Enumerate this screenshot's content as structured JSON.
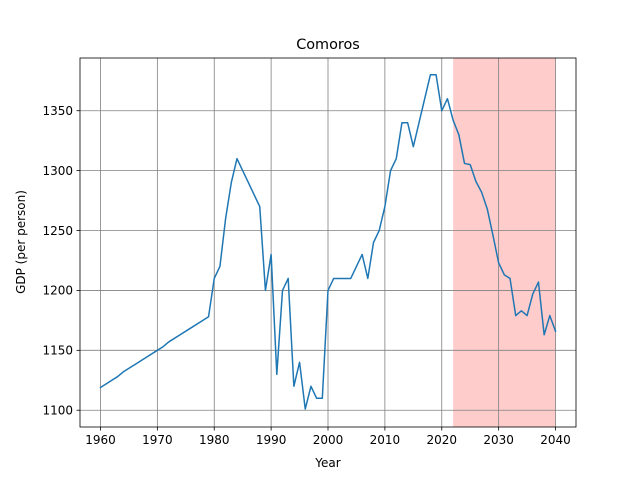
{
  "chart_data": {
    "type": "line",
    "title": "Comoros",
    "xlabel": "Year",
    "ylabel": "GDP (per person)",
    "xlim": [
      1956.4,
      2043.6
    ],
    "ylim": [
      1086.0,
      1394.0
    ],
    "xticks": [
      1960,
      1970,
      1980,
      1990,
      2000,
      2010,
      2020,
      2030,
      2040
    ],
    "yticks": [
      1100,
      1150,
      1200,
      1250,
      1300,
      1350
    ],
    "grid": true,
    "legend": "none",
    "shaded_region": {
      "x_start": 2022,
      "x_end": 2040,
      "color": "#ffcccc"
    },
    "series": [
      {
        "color": "#1f77b4",
        "x": [
          1960,
          1962,
          1963,
          1964,
          1966,
          1968,
          1970,
          1971,
          1972,
          1974,
          1976,
          1978,
          1979,
          1980,
          1981,
          1982,
          1983,
          1984,
          1986,
          1988,
          1989,
          1990,
          1991,
          1992,
          1993,
          1994,
          1995,
          1996,
          1997,
          1998,
          1999,
          2000,
          2001,
          2002,
          2003,
          2004,
          2005,
          2006,
          2007,
          2008,
          2009,
          2010,
          2011,
          2012,
          2013,
          2014,
          2015,
          2016,
          2017,
          2018,
          2019,
          2020,
          2021,
          2022,
          2023,
          2024,
          2025,
          2026,
          2027,
          2028,
          2029,
          2030,
          2031,
          2032,
          2033,
          2034,
          2035,
          2036,
          2037,
          2038,
          2039,
          2040
        ],
        "y": [
          1119,
          1125,
          1128,
          1132,
          1138,
          1144,
          1150,
          1153,
          1157,
          1163,
          1169,
          1175,
          1178,
          1210,
          1220,
          1260,
          1290,
          1310,
          1290,
          1270,
          1200,
          1230,
          1130,
          1200,
          1210,
          1120,
          1140,
          1101,
          1120,
          1110,
          1110,
          1200,
          1210,
          1210,
          1210,
          1210,
          1220,
          1230,
          1210,
          1240,
          1250,
          1270,
          1300,
          1310,
          1340,
          1340,
          1320,
          1340,
          1360,
          1380,
          1380,
          1350,
          1360,
          1342,
          1330,
          1306,
          1305,
          1291,
          1282,
          1268,
          1246,
          1223,
          1213,
          1210,
          1179,
          1183,
          1179,
          1197,
          1207,
          1163,
          1179,
          1166
        ]
      }
    ]
  }
}
